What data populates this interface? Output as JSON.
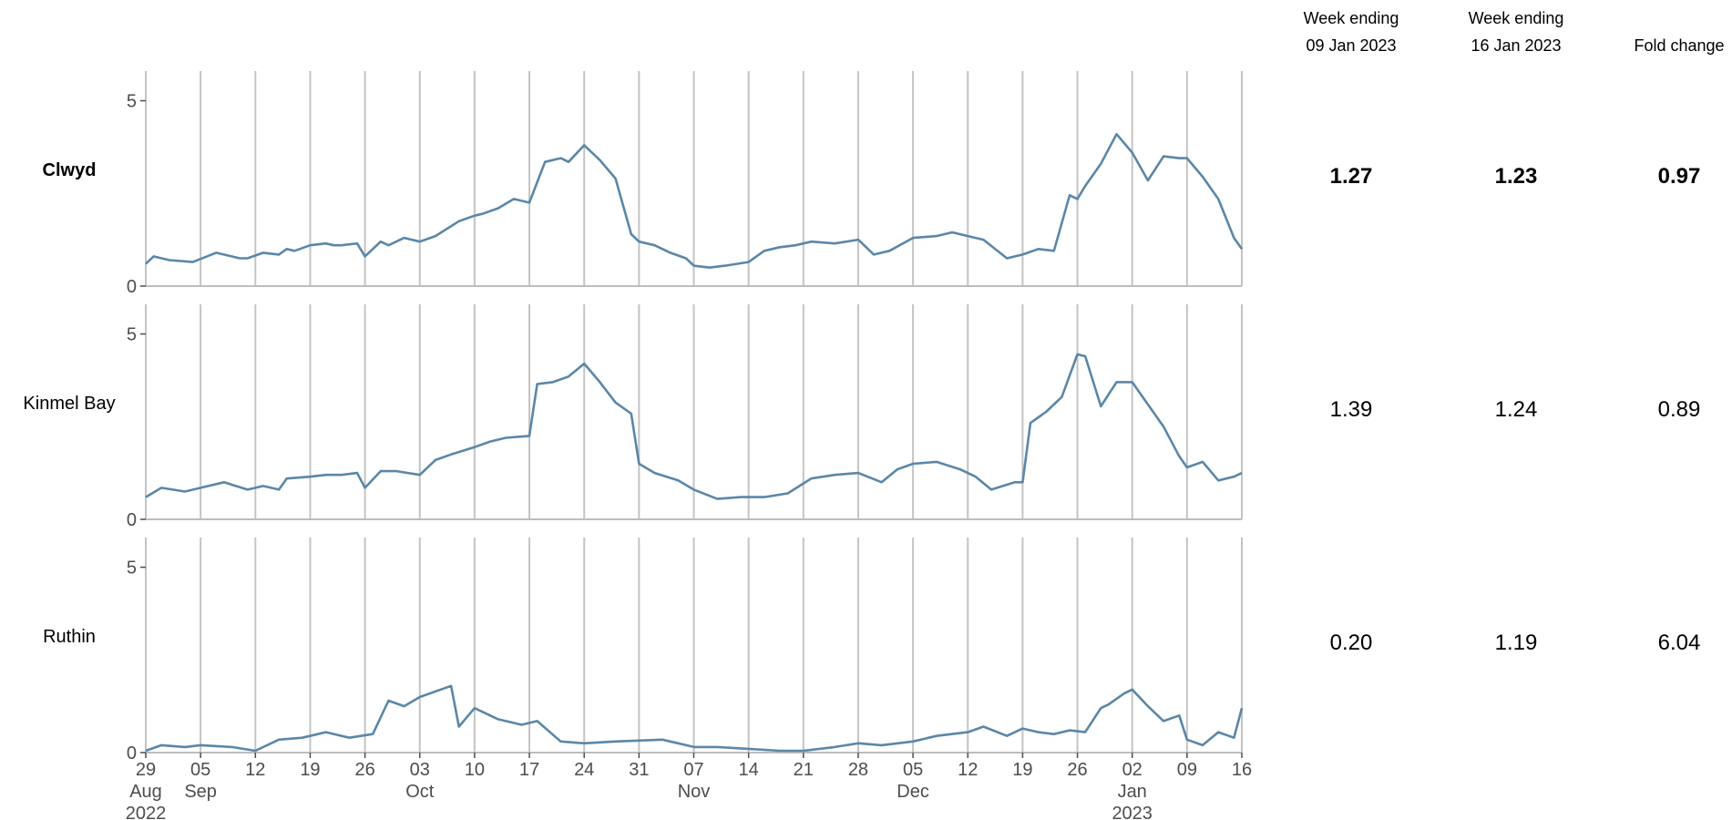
{
  "table": {
    "headers": [
      {
        "line1": "Week ending",
        "line2": "09 Jan 2023"
      },
      {
        "line1": "Week ending",
        "line2": "16 Jan 2023"
      },
      {
        "line1": "",
        "line2": "Fold change"
      }
    ]
  },
  "chart_data": {
    "type": "line",
    "line_color": "#5b87a8",
    "grid": "vertical weekly lines",
    "ylim": [
      0,
      5.8
    ],
    "yticks": [
      0,
      5
    ],
    "x_start": "2022-08-29",
    "x_end": "2023-01-16",
    "week_ticks": [
      "2022-08-29",
      "2022-09-05",
      "2022-09-12",
      "2022-09-19",
      "2022-09-26",
      "2022-10-03",
      "2022-10-10",
      "2022-10-17",
      "2022-10-24",
      "2022-10-31",
      "2022-11-07",
      "2022-11-14",
      "2022-11-21",
      "2022-11-28",
      "2022-12-05",
      "2022-12-12",
      "2022-12-19",
      "2022-12-26",
      "2023-01-02",
      "2023-01-09",
      "2023-01-16"
    ],
    "x_tick_labels": [
      {
        "day": "29",
        "month": "Aug",
        "year": "2022"
      },
      {
        "day": "05",
        "month": "Sep",
        "year": ""
      },
      {
        "day": "12",
        "month": "",
        "year": ""
      },
      {
        "day": "19",
        "month": "",
        "year": ""
      },
      {
        "day": "26",
        "month": "",
        "year": ""
      },
      {
        "day": "03",
        "month": "Oct",
        "year": ""
      },
      {
        "day": "10",
        "month": "",
        "year": ""
      },
      {
        "day": "17",
        "month": "",
        "year": ""
      },
      {
        "day": "24",
        "month": "",
        "year": ""
      },
      {
        "day": "31",
        "month": "",
        "year": ""
      },
      {
        "day": "07",
        "month": "Nov",
        "year": ""
      },
      {
        "day": "14",
        "month": "",
        "year": ""
      },
      {
        "day": "21",
        "month": "",
        "year": ""
      },
      {
        "day": "28",
        "month": "",
        "year": ""
      },
      {
        "day": "05",
        "month": "Dec",
        "year": ""
      },
      {
        "day": "12",
        "month": "",
        "year": ""
      },
      {
        "day": "19",
        "month": "",
        "year": ""
      },
      {
        "day": "26",
        "month": "",
        "year": ""
      },
      {
        "day": "02",
        "month": "Jan",
        "year": "2023"
      },
      {
        "day": "09",
        "month": "",
        "year": ""
      },
      {
        "day": "16",
        "month": "",
        "year": ""
      }
    ],
    "panels": [
      {
        "name": "Clwyd",
        "bold": true,
        "week_09_jan": "1.27",
        "week_16_jan": "1.23",
        "fold_change": "0.97",
        "x": [
          "2022-08-29",
          "2022-08-30",
          "2022-09-01",
          "2022-09-04",
          "2022-09-07",
          "2022-09-08",
          "2022-09-10",
          "2022-09-11",
          "2022-09-13",
          "2022-09-15",
          "2022-09-16",
          "2022-09-17",
          "2022-09-19",
          "2022-09-21",
          "2022-09-22",
          "2022-09-23",
          "2022-09-25",
          "2022-09-26",
          "2022-09-28",
          "2022-09-29",
          "2022-10-01",
          "2022-10-03",
          "2022-10-05",
          "2022-10-08",
          "2022-10-10",
          "2022-10-11",
          "2022-10-13",
          "2022-10-15",
          "2022-10-17",
          "2022-10-19",
          "2022-10-21",
          "2022-10-22",
          "2022-10-24",
          "2022-10-26",
          "2022-10-28",
          "2022-10-30",
          "2022-10-31",
          "2022-11-02",
          "2022-11-04",
          "2022-11-06",
          "2022-11-07",
          "2022-11-09",
          "2022-11-11",
          "2022-11-14",
          "2022-11-16",
          "2022-11-18",
          "2022-11-20",
          "2022-11-22",
          "2022-11-25",
          "2022-11-28",
          "2022-11-30",
          "2022-12-02",
          "2022-12-05",
          "2022-12-08",
          "2022-12-10",
          "2022-12-12",
          "2022-12-14",
          "2022-12-17",
          "2022-12-19",
          "2022-12-21",
          "2022-12-23",
          "2022-12-25",
          "2022-12-26",
          "2022-12-27",
          "2022-12-29",
          "2022-12-31",
          "2023-01-02",
          "2023-01-04",
          "2023-01-06",
          "2023-01-08",
          "2023-01-09",
          "2023-01-11",
          "2023-01-13",
          "2023-01-15",
          "2023-01-16"
        ],
        "y": [
          0.6,
          0.8,
          0.7,
          0.65,
          0.9,
          0.85,
          0.75,
          0.75,
          0.9,
          0.85,
          1.0,
          0.95,
          1.1,
          1.15,
          1.1,
          1.1,
          1.15,
          0.8,
          1.2,
          1.1,
          1.3,
          1.2,
          1.35,
          1.75,
          1.9,
          1.95,
          2.1,
          2.35,
          2.25,
          3.35,
          3.45,
          3.35,
          3.8,
          3.4,
          2.9,
          1.4,
          1.2,
          1.1,
          0.9,
          0.75,
          0.55,
          0.5,
          0.55,
          0.65,
          0.95,
          1.05,
          1.1,
          1.2,
          1.15,
          1.25,
          0.85,
          0.95,
          1.3,
          1.35,
          1.45,
          1.35,
          1.25,
          0.75,
          0.85,
          1.0,
          0.95,
          2.45,
          2.35,
          2.7,
          3.3,
          4.1,
          3.6,
          2.85,
          3.5,
          3.45,
          3.45,
          2.95,
          2.35,
          1.3,
          1.0
        ]
      },
      {
        "name": "Kinmel Bay",
        "bold": false,
        "week_09_jan": "1.39",
        "week_16_jan": "1.24",
        "fold_change": "0.89",
        "x": [
          "2022-08-29",
          "2022-08-31",
          "2022-09-03",
          "2022-09-05",
          "2022-09-08",
          "2022-09-11",
          "2022-09-13",
          "2022-09-15",
          "2022-09-16",
          "2022-09-19",
          "2022-09-21",
          "2022-09-23",
          "2022-09-25",
          "2022-09-26",
          "2022-09-28",
          "2022-09-30",
          "2022-10-03",
          "2022-10-05",
          "2022-10-07",
          "2022-10-10",
          "2022-10-12",
          "2022-10-14",
          "2022-10-17",
          "2022-10-18",
          "2022-10-20",
          "2022-10-22",
          "2022-10-24",
          "2022-10-26",
          "2022-10-28",
          "2022-10-30",
          "2022-10-31",
          "2022-11-02",
          "2022-11-05",
          "2022-11-07",
          "2022-11-10",
          "2022-11-13",
          "2022-11-16",
          "2022-11-19",
          "2022-11-22",
          "2022-11-25",
          "2022-11-28",
          "2022-12-01",
          "2022-12-03",
          "2022-12-05",
          "2022-12-08",
          "2022-12-11",
          "2022-12-13",
          "2022-12-15",
          "2022-12-18",
          "2022-12-19",
          "2022-12-20",
          "2022-12-22",
          "2022-12-24",
          "2022-12-26",
          "2022-12-27",
          "2022-12-29",
          "2022-12-31",
          "2023-01-02",
          "2023-01-04",
          "2023-01-06",
          "2023-01-08",
          "2023-01-09",
          "2023-01-11",
          "2023-01-13",
          "2023-01-15",
          "2023-01-16"
        ],
        "y": [
          0.6,
          0.85,
          0.75,
          0.85,
          1.0,
          0.8,
          0.9,
          0.8,
          1.1,
          1.15,
          1.2,
          1.2,
          1.25,
          0.85,
          1.3,
          1.3,
          1.2,
          1.6,
          1.75,
          1.95,
          2.1,
          2.2,
          2.25,
          3.65,
          3.7,
          3.85,
          4.2,
          3.7,
          3.15,
          2.85,
          1.5,
          1.25,
          1.05,
          0.8,
          0.55,
          0.6,
          0.6,
          0.7,
          1.1,
          1.2,
          1.25,
          1.0,
          1.35,
          1.5,
          1.55,
          1.35,
          1.15,
          0.8,
          1.0,
          1.0,
          2.6,
          2.9,
          3.3,
          4.45,
          4.4,
          3.05,
          3.7,
          3.7,
          3.1,
          2.5,
          1.7,
          1.4,
          1.55,
          1.05,
          1.15,
          1.25
        ]
      },
      {
        "name": "Ruthin",
        "bold": false,
        "week_09_jan": "0.20",
        "week_16_jan": "1.19",
        "fold_change": "6.04",
        "x": [
          "2022-08-29",
          "2022-08-31",
          "2022-09-03",
          "2022-09-05",
          "2022-09-09",
          "2022-09-12",
          "2022-09-15",
          "2022-09-18",
          "2022-09-21",
          "2022-09-24",
          "2022-09-27",
          "2022-09-29",
          "2022-10-01",
          "2022-10-03",
          "2022-10-07",
          "2022-10-08",
          "2022-10-10",
          "2022-10-13",
          "2022-10-16",
          "2022-10-18",
          "2022-10-21",
          "2022-10-24",
          "2022-10-28",
          "2022-11-03",
          "2022-11-05",
          "2022-11-07",
          "2022-11-10",
          "2022-11-14",
          "2022-11-18",
          "2022-11-21",
          "2022-11-25",
          "2022-11-28",
          "2022-12-01",
          "2022-12-05",
          "2022-12-08",
          "2022-12-12",
          "2022-12-14",
          "2022-12-17",
          "2022-12-19",
          "2022-12-21",
          "2022-12-23",
          "2022-12-25",
          "2022-12-27",
          "2022-12-29",
          "2022-12-30",
          "2023-01-01",
          "2023-01-02",
          "2023-01-04",
          "2023-01-06",
          "2023-01-08",
          "2023-01-09",
          "2023-01-11",
          "2023-01-13",
          "2023-01-15",
          "2023-01-16"
        ],
        "y": [
          0.05,
          0.2,
          0.15,
          0.2,
          0.15,
          0.05,
          0.35,
          0.4,
          0.55,
          0.4,
          0.5,
          1.4,
          1.25,
          1.5,
          1.8,
          0.7,
          1.2,
          0.9,
          0.75,
          0.85,
          0.3,
          0.25,
          0.3,
          0.35,
          0.25,
          0.15,
          0.15,
          0.1,
          0.05,
          0.05,
          0.15,
          0.25,
          0.2,
          0.3,
          0.45,
          0.55,
          0.7,
          0.45,
          0.65,
          0.55,
          0.5,
          0.6,
          0.55,
          1.2,
          1.3,
          1.6,
          1.7,
          1.25,
          0.85,
          1.0,
          0.35,
          0.2,
          0.55,
          0.4,
          1.2
        ]
      }
    ]
  }
}
